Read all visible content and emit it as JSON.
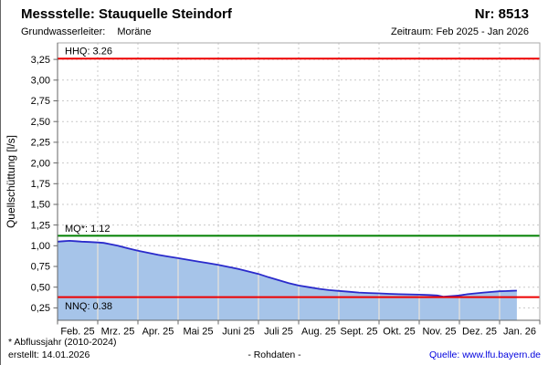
{
  "header": {
    "title": "Messstelle: Stauquelle Steindorf",
    "station_number": "Nr: 8513",
    "aquifer_label": "Grundwasserleiter:",
    "aquifer_value": "Moräne",
    "period": "Zeitraum: Feb 2025 - Jan 2026"
  },
  "footer": {
    "footnote": "* Abflussjahr (2010-2024)",
    "created": "erstellt:  14.01.2026",
    "data_type": "- Rohdaten -",
    "source": "Quelle: www.lfu.bayern.de"
  },
  "colors": {
    "reference_red": "#ee0000",
    "reference_green": "#008000",
    "series_line": "#2a2acb",
    "series_fill": "#a6c4e9",
    "grid_dashed": "#c9c9c9",
    "grid_in_fill": "#dcdcdc",
    "border_light": "#aaaaaa",
    "axis_dark": "#666666",
    "link_blue": "#0000dd"
  },
  "chart_data": {
    "type": "area",
    "title": "",
    "xlabel": "",
    "ylabel": "Quellschüttung [l/s]",
    "ylim": [
      0.1,
      3.45
    ],
    "grid": true,
    "yticks": [
      0.25,
      0.5,
      0.75,
      1.0,
      1.25,
      1.5,
      1.75,
      2.0,
      2.25,
      2.5,
      2.75,
      3.0,
      3.25
    ],
    "ytick_labels": [
      "0,25",
      "0,50",
      "0,75",
      "1,00",
      "1,25",
      "1,50",
      "1,75",
      "2,00",
      "2,25",
      "2,50",
      "2,75",
      "3,00",
      "3,25"
    ],
    "x_months": [
      "Feb. 25",
      "Mrz. 25",
      "Apr. 25",
      "Mai 25",
      "Juni 25",
      "Juli 25",
      "Aug. 25",
      "Sept. 25",
      "Okt. 25",
      "Nov. 25",
      "Dez. 25",
      "Jan. 26"
    ],
    "x_month_units": 12,
    "reference_lines": [
      {
        "name": "hhq",
        "label": "HHQ: 3.26",
        "value": 3.26,
        "color": "#ee0000",
        "label_position": "above"
      },
      {
        "name": "mq",
        "label": "MQ*: 1.12",
        "value": 1.12,
        "color": "#008000",
        "label_position": "above"
      },
      {
        "name": "nnq",
        "label": "NNQ: 0.38",
        "value": 0.38,
        "color": "#ee0000",
        "label_position": "below"
      }
    ],
    "series": [
      {
        "name": "Quellschüttung Rohdaten",
        "line_color": "#2a2acb",
        "fill_color": "#a6c4e9",
        "points": [
          [
            0.0,
            1.05
          ],
          [
            0.15,
            1.055
          ],
          [
            0.3,
            1.06
          ],
          [
            0.45,
            1.055
          ],
          [
            0.6,
            1.05
          ],
          [
            0.8,
            1.045
          ],
          [
            1.0,
            1.04
          ],
          [
            1.15,
            1.035
          ],
          [
            1.3,
            1.02
          ],
          [
            1.5,
            1.0
          ],
          [
            1.75,
            0.97
          ],
          [
            2.0,
            0.94
          ],
          [
            2.25,
            0.915
          ],
          [
            2.5,
            0.89
          ],
          [
            2.75,
            0.87
          ],
          [
            3.0,
            0.85
          ],
          [
            3.25,
            0.83
          ],
          [
            3.5,
            0.81
          ],
          [
            3.75,
            0.79
          ],
          [
            4.0,
            0.77
          ],
          [
            4.25,
            0.745
          ],
          [
            4.5,
            0.72
          ],
          [
            4.75,
            0.69
          ],
          [
            5.0,
            0.66
          ],
          [
            5.25,
            0.62
          ],
          [
            5.5,
            0.585
          ],
          [
            5.75,
            0.55
          ],
          [
            6.0,
            0.52
          ],
          [
            6.25,
            0.5
          ],
          [
            6.5,
            0.48
          ],
          [
            6.75,
            0.465
          ],
          [
            7.0,
            0.455
          ],
          [
            7.25,
            0.445
          ],
          [
            7.5,
            0.435
          ],
          [
            7.75,
            0.43
          ],
          [
            8.0,
            0.425
          ],
          [
            8.25,
            0.42
          ],
          [
            8.5,
            0.415
          ],
          [
            8.75,
            0.413
          ],
          [
            9.0,
            0.41
          ],
          [
            9.25,
            0.405
          ],
          [
            9.45,
            0.4
          ],
          [
            9.6,
            0.385
          ],
          [
            9.75,
            0.39
          ],
          [
            9.9,
            0.395
          ],
          [
            10.0,
            0.4
          ],
          [
            10.2,
            0.415
          ],
          [
            10.4,
            0.425
          ],
          [
            10.6,
            0.435
          ],
          [
            10.8,
            0.443
          ],
          [
            11.0,
            0.45
          ],
          [
            11.15,
            0.453
          ],
          [
            11.3,
            0.456
          ],
          [
            11.43,
            0.458
          ]
        ]
      }
    ]
  }
}
